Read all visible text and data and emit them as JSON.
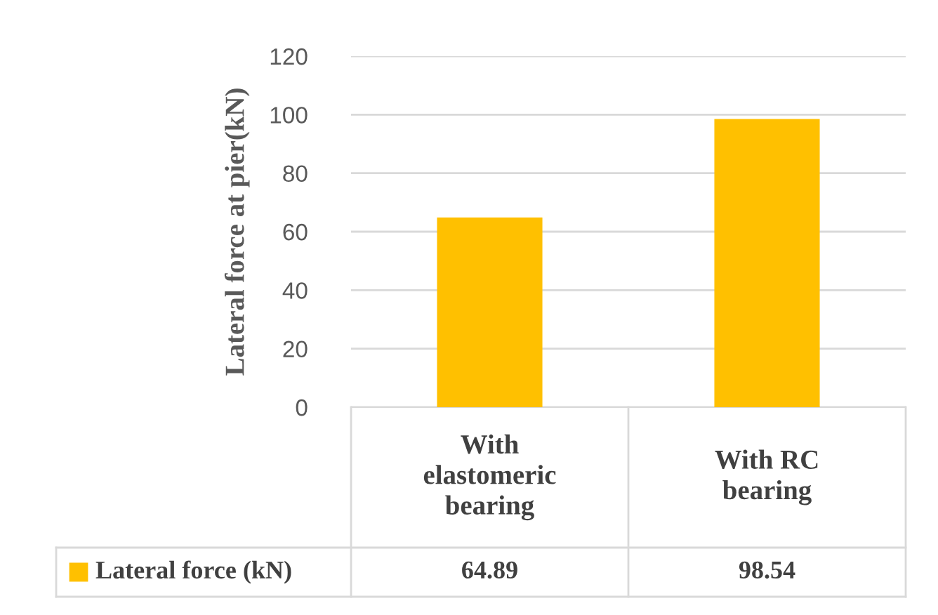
{
  "chart_data": {
    "type": "bar",
    "ylabel": "Lateral force at pier(kN)",
    "categories": [
      "With\nelastomeric\nbearing",
      "With RC\nbearing"
    ],
    "series": [
      {
        "name": "Lateral force (kN)",
        "color": "#ffc000",
        "values": [
          64.89,
          98.54
        ]
      }
    ],
    "ylim": [
      0,
      120
    ],
    "yticks": [
      0,
      20,
      40,
      60,
      80,
      100,
      120
    ],
    "grid": "y",
    "data_labels": true
  }
}
